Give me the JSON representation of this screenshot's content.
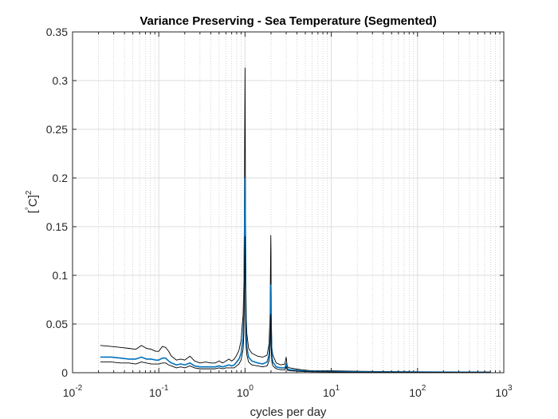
{
  "chart_data": {
    "type": "line",
    "title": "Variance Preserving - Sea Temperature (Segmented)",
    "xlabel": "cycles per day",
    "ylabel": "[°C]²",
    "ylabel_parts": {
      "open": "[",
      "deg": "°",
      "unit": "C]",
      "sup": "2"
    },
    "xscale": "log",
    "xlim": [
      0.01,
      1000
    ],
    "ylim": [
      0,
      0.35
    ],
    "xticks": [
      {
        "base": "10",
        "exp": "-2"
      },
      {
        "base": "10",
        "exp": "-1"
      },
      {
        "base": "10",
        "exp": "0"
      },
      {
        "base": "10",
        "exp": "1"
      },
      {
        "base": "10",
        "exp": "2"
      },
      {
        "base": "10",
        "exp": "3"
      }
    ],
    "xtick_values": [
      0.01,
      0.1,
      1,
      10,
      100,
      1000
    ],
    "yticks": [
      "0",
      "0.05",
      "0.1",
      "0.15",
      "0.2",
      "0.25",
      "0.3",
      "0.35"
    ],
    "ytick_values": [
      0,
      0.05,
      0.1,
      0.15,
      0.2,
      0.25,
      0.3,
      0.35
    ],
    "grid": true,
    "colors": {
      "estimate": "#0072BD",
      "bounds": "#000000",
      "axes": "#262626",
      "grid": "#dcdcdc"
    },
    "series": [
      {
        "role": "upper",
        "color": "#000000",
        "x": [
          0.021,
          0.028,
          0.036,
          0.045,
          0.054,
          0.063,
          0.072,
          0.082,
          0.092,
          0.1,
          0.11,
          0.12,
          0.13,
          0.14,
          0.16,
          0.18,
          0.2,
          0.23,
          0.26,
          0.3,
          0.35,
          0.4,
          0.45,
          0.5,
          0.55,
          0.6,
          0.65,
          0.7,
          0.75,
          0.8,
          0.85,
          0.9,
          0.95,
          0.97,
          0.98,
          0.99,
          1.0,
          1.01,
          1.02,
          1.03,
          1.05,
          1.1,
          1.2,
          1.4,
          1.6,
          1.8,
          1.9,
          1.95,
          1.97,
          1.99,
          2.0,
          2.01,
          2.03,
          2.05,
          2.1,
          2.3,
          2.6,
          2.9,
          3.0,
          3.05,
          3.1,
          3.3,
          3.8,
          4.5,
          6,
          10,
          20,
          50,
          100,
          300,
          700
        ],
        "y": [
          0.028,
          0.027,
          0.026,
          0.025,
          0.024,
          0.028,
          0.025,
          0.024,
          0.022,
          0.022,
          0.027,
          0.026,
          0.022,
          0.017,
          0.013,
          0.014,
          0.013,
          0.017,
          0.012,
          0.01,
          0.011,
          0.01,
          0.01,
          0.012,
          0.01,
          0.012,
          0.014,
          0.012,
          0.014,
          0.018,
          0.023,
          0.033,
          0.06,
          0.095,
          0.15,
          0.24,
          0.313,
          0.2,
          0.11,
          0.06,
          0.04,
          0.025,
          0.02,
          0.017,
          0.016,
          0.018,
          0.03,
          0.06,
          0.1,
          0.141,
          0.125,
          0.07,
          0.04,
          0.025,
          0.018,
          0.01,
          0.008,
          0.009,
          0.016,
          0.01,
          0.006,
          0.005,
          0.004,
          0.003,
          0.002,
          0.002,
          0.0015,
          0.0012,
          0.001,
          0.0009,
          0.0008
        ]
      },
      {
        "role": "estimate",
        "color": "#0072BD",
        "x": [
          0.021,
          0.028,
          0.036,
          0.045,
          0.054,
          0.063,
          0.072,
          0.082,
          0.092,
          0.1,
          0.11,
          0.12,
          0.13,
          0.14,
          0.16,
          0.18,
          0.2,
          0.23,
          0.26,
          0.3,
          0.35,
          0.4,
          0.45,
          0.5,
          0.55,
          0.6,
          0.65,
          0.7,
          0.75,
          0.8,
          0.85,
          0.9,
          0.95,
          0.97,
          0.98,
          0.99,
          1.0,
          1.01,
          1.02,
          1.03,
          1.05,
          1.1,
          1.2,
          1.4,
          1.6,
          1.8,
          1.9,
          1.95,
          1.97,
          1.99,
          2.0,
          2.01,
          2.03,
          2.05,
          2.1,
          2.3,
          2.6,
          2.9,
          3.0,
          3.05,
          3.1,
          3.3,
          3.8,
          4.5,
          6,
          10,
          20,
          50,
          100,
          300,
          700
        ],
        "y": [
          0.016,
          0.016,
          0.015,
          0.014,
          0.014,
          0.016,
          0.014,
          0.014,
          0.013,
          0.013,
          0.015,
          0.015,
          0.012,
          0.01,
          0.008,
          0.009,
          0.008,
          0.01,
          0.007,
          0.006,
          0.006,
          0.006,
          0.006,
          0.007,
          0.006,
          0.007,
          0.008,
          0.007,
          0.008,
          0.011,
          0.014,
          0.02,
          0.036,
          0.06,
          0.1,
          0.16,
          0.2,
          0.13,
          0.07,
          0.04,
          0.026,
          0.016,
          0.012,
          0.01,
          0.009,
          0.011,
          0.018,
          0.035,
          0.06,
          0.09,
          0.08,
          0.045,
          0.025,
          0.016,
          0.011,
          0.006,
          0.005,
          0.005,
          0.009,
          0.006,
          0.004,
          0.003,
          0.0025,
          0.002,
          0.0015,
          0.0012,
          0.001,
          0.0008,
          0.0007,
          0.0006,
          0.0005
        ]
      },
      {
        "role": "lower",
        "color": "#000000",
        "x": [
          0.021,
          0.028,
          0.036,
          0.045,
          0.054,
          0.063,
          0.072,
          0.082,
          0.092,
          0.1,
          0.11,
          0.12,
          0.13,
          0.14,
          0.16,
          0.18,
          0.2,
          0.23,
          0.26,
          0.3,
          0.35,
          0.4,
          0.45,
          0.5,
          0.55,
          0.6,
          0.65,
          0.7,
          0.75,
          0.8,
          0.85,
          0.9,
          0.95,
          0.97,
          0.98,
          0.99,
          1.0,
          1.01,
          1.02,
          1.03,
          1.05,
          1.1,
          1.2,
          1.4,
          1.6,
          1.8,
          1.9,
          1.95,
          1.97,
          1.99,
          2.0,
          2.01,
          2.03,
          2.05,
          2.1,
          2.3,
          2.6,
          2.9,
          3.0,
          3.05,
          3.1,
          3.3,
          3.8,
          4.5,
          6,
          10,
          20,
          50,
          100,
          300,
          700
        ],
        "y": [
          0.011,
          0.011,
          0.01,
          0.01,
          0.009,
          0.011,
          0.01,
          0.009,
          0.009,
          0.009,
          0.01,
          0.01,
          0.008,
          0.007,
          0.005,
          0.006,
          0.005,
          0.007,
          0.005,
          0.004,
          0.004,
          0.004,
          0.004,
          0.005,
          0.004,
          0.005,
          0.005,
          0.005,
          0.005,
          0.007,
          0.009,
          0.013,
          0.024,
          0.04,
          0.07,
          0.11,
          0.14,
          0.09,
          0.05,
          0.028,
          0.018,
          0.011,
          0.008,
          0.007,
          0.006,
          0.007,
          0.012,
          0.024,
          0.04,
          0.06,
          0.055,
          0.03,
          0.017,
          0.011,
          0.007,
          0.004,
          0.003,
          0.003,
          0.006,
          0.004,
          0.0025,
          0.002,
          0.0017,
          0.0013,
          0.001,
          0.0008,
          0.0006,
          0.0005,
          0.0004,
          0.0004,
          0.0003
        ]
      }
    ]
  }
}
